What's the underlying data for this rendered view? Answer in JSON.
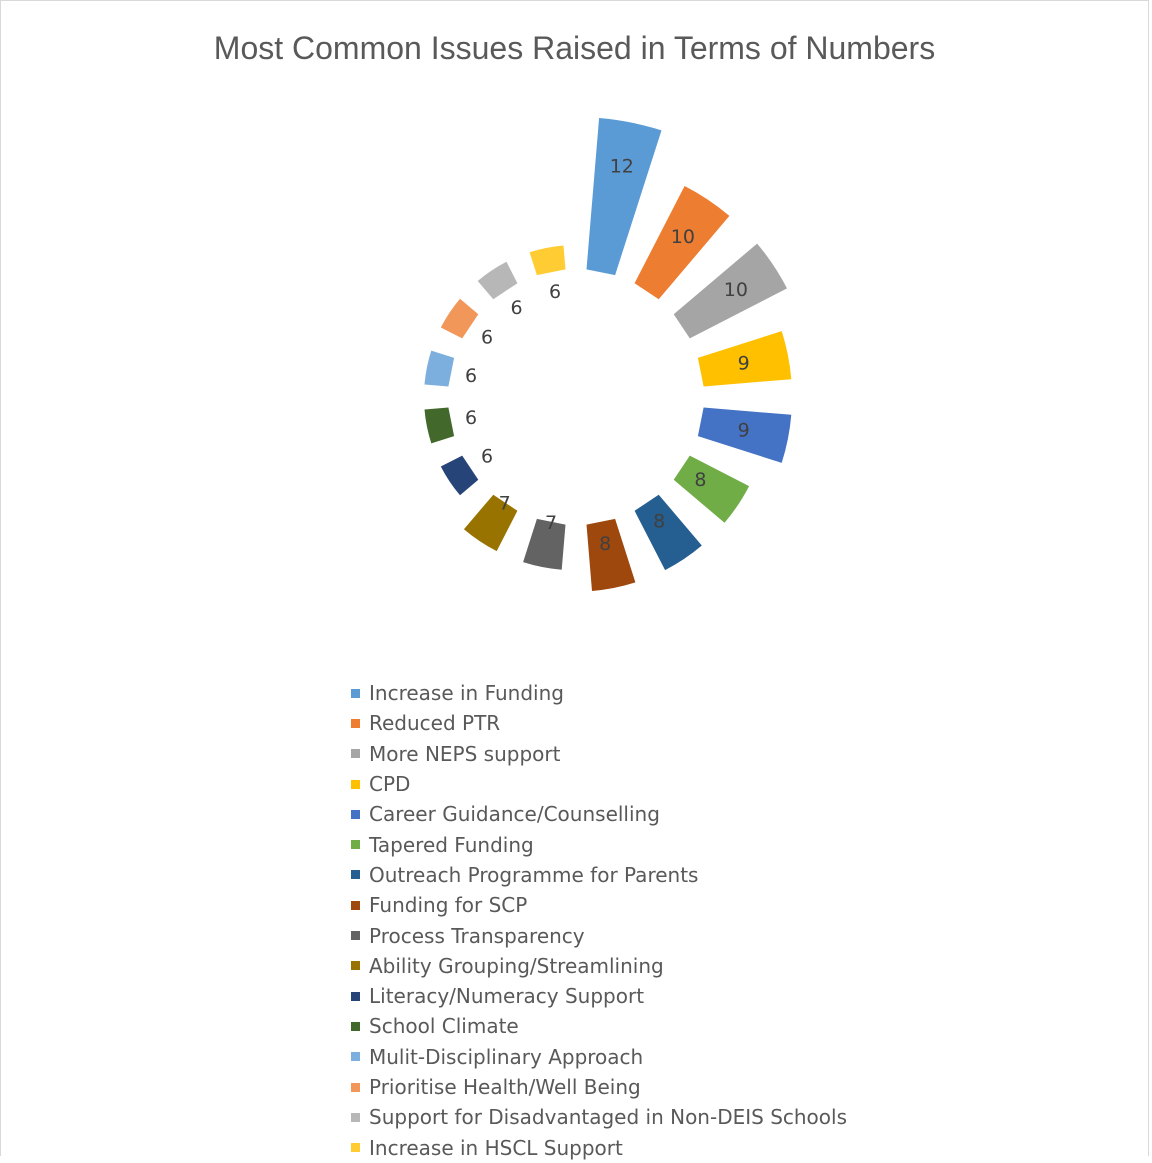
{
  "chart_data": {
    "type": "pie",
    "title": "Most Common Issues Raised in Terms of Numbers",
    "categories": [
      "Increase in Funding",
      "Reduced PTR",
      "More NEPS support",
      "CPD",
      "Career Guidance/Counselling",
      "Tapered Funding",
      "Outreach Programme for Parents",
      "Funding for SCP",
      "Process Transparency",
      "Ability Grouping/Streamlining",
      "Literacy/Numeracy Support",
      "School Climate",
      "Mulit-Disciplinary Approach",
      "Prioritise Health/Well Being",
      "Support for Disadvantaged in Non-DEIS Schools",
      "Increase in HSCL Support"
    ],
    "values": [
      12,
      10,
      10,
      9,
      9,
      8,
      8,
      8,
      7,
      7,
      6,
      6,
      6,
      6,
      6,
      6
    ],
    "colors": [
      "#5b9bd5",
      "#ed7d31",
      "#a5a5a5",
      "#ffc000",
      "#4472c4",
      "#70ad47",
      "#255e91",
      "#9e480e",
      "#636363",
      "#997300",
      "#264478",
      "#43682b",
      "#7cafdd",
      "#f1975a",
      "#b7b7b7",
      "#ffcd33"
    ],
    "legend_position": "bottom",
    "data_labels": true
  }
}
